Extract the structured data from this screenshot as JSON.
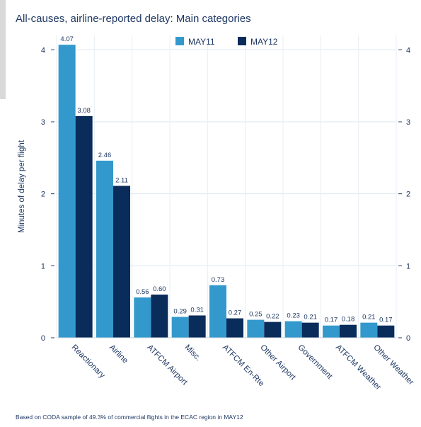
{
  "chart_data": {
    "type": "bar",
    "title": "All-causes, airline-reported delay: Main categories",
    "ylabel": "Minutes of delay per flight",
    "xlabel": "",
    "ylim": [
      0,
      4.2
    ],
    "yticks": [
      0,
      1,
      2,
      3,
      4
    ],
    "grid": true,
    "legend_position": "top-center",
    "categories": [
      "Reactionary",
      "Airline",
      "ATFCM Airport",
      "Misc.",
      "ATFCM En-Rte",
      "Other Airport",
      "Government",
      "ATFCM Weather",
      "Other Weather"
    ],
    "series": [
      {
        "name": "MAY11",
        "color": "#3399cc",
        "values": [
          4.07,
          2.46,
          0.56,
          0.29,
          0.73,
          0.25,
          0.23,
          0.17,
          0.21
        ]
      },
      {
        "name": "MAY12",
        "color": "#0a2c5a",
        "values": [
          3.08,
          2.11,
          0.6,
          0.31,
          0.27,
          0.22,
          0.21,
          0.18,
          0.17
        ]
      }
    ],
    "data_labels": [
      [
        "4.07",
        "2.46",
        "0.56",
        "0.29",
        "0.73",
        "0.25",
        "0.23",
        "0.17",
        "0.21"
      ],
      [
        "3.08",
        "2.11",
        "0.60",
        "0.31",
        "0.27",
        "0.22",
        "0.21",
        "0.18",
        "0.17"
      ]
    ]
  },
  "footnote": "Based on CODA sample of 49.3% of commercial flights in the ECAC region in MAY12"
}
